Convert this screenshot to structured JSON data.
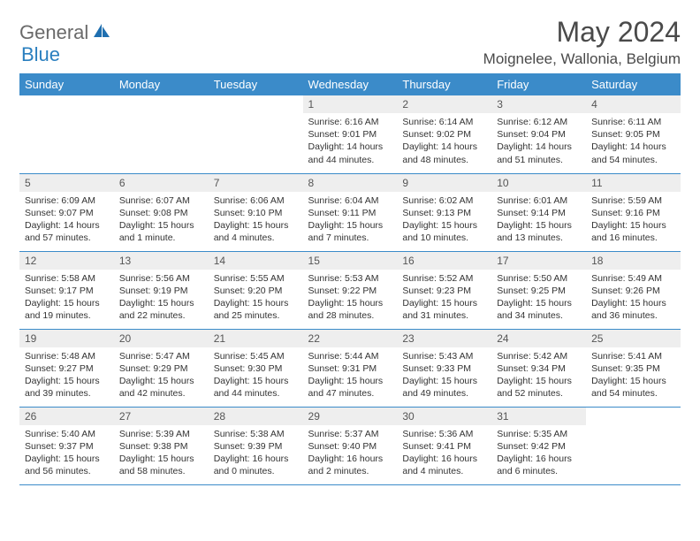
{
  "logo": {
    "text1": "General",
    "text2": "Blue"
  },
  "title": "May 2024",
  "location": "Moignelee, Wallonia, Belgium",
  "colors": {
    "header_bg": "#3b8bc9",
    "header_text": "#ffffff",
    "daynum_bg": "#eeeeee",
    "border": "#3b8bc9",
    "logo_gray": "#6a6a6a",
    "logo_blue": "#2a7fbf"
  },
  "weekdays": [
    "Sunday",
    "Monday",
    "Tuesday",
    "Wednesday",
    "Thursday",
    "Friday",
    "Saturday"
  ],
  "weeks": [
    [
      null,
      null,
      null,
      {
        "n": "1",
        "sr": "6:16 AM",
        "ss": "9:01 PM",
        "dl": "14 hours and 44 minutes."
      },
      {
        "n": "2",
        "sr": "6:14 AM",
        "ss": "9:02 PM",
        "dl": "14 hours and 48 minutes."
      },
      {
        "n": "3",
        "sr": "6:12 AM",
        "ss": "9:04 PM",
        "dl": "14 hours and 51 minutes."
      },
      {
        "n": "4",
        "sr": "6:11 AM",
        "ss": "9:05 PM",
        "dl": "14 hours and 54 minutes."
      }
    ],
    [
      {
        "n": "5",
        "sr": "6:09 AM",
        "ss": "9:07 PM",
        "dl": "14 hours and 57 minutes."
      },
      {
        "n": "6",
        "sr": "6:07 AM",
        "ss": "9:08 PM",
        "dl": "15 hours and 1 minute."
      },
      {
        "n": "7",
        "sr": "6:06 AM",
        "ss": "9:10 PM",
        "dl": "15 hours and 4 minutes."
      },
      {
        "n": "8",
        "sr": "6:04 AM",
        "ss": "9:11 PM",
        "dl": "15 hours and 7 minutes."
      },
      {
        "n": "9",
        "sr": "6:02 AM",
        "ss": "9:13 PM",
        "dl": "15 hours and 10 minutes."
      },
      {
        "n": "10",
        "sr": "6:01 AM",
        "ss": "9:14 PM",
        "dl": "15 hours and 13 minutes."
      },
      {
        "n": "11",
        "sr": "5:59 AM",
        "ss": "9:16 PM",
        "dl": "15 hours and 16 minutes."
      }
    ],
    [
      {
        "n": "12",
        "sr": "5:58 AM",
        "ss": "9:17 PM",
        "dl": "15 hours and 19 minutes."
      },
      {
        "n": "13",
        "sr": "5:56 AM",
        "ss": "9:19 PM",
        "dl": "15 hours and 22 minutes."
      },
      {
        "n": "14",
        "sr": "5:55 AM",
        "ss": "9:20 PM",
        "dl": "15 hours and 25 minutes."
      },
      {
        "n": "15",
        "sr": "5:53 AM",
        "ss": "9:22 PM",
        "dl": "15 hours and 28 minutes."
      },
      {
        "n": "16",
        "sr": "5:52 AM",
        "ss": "9:23 PM",
        "dl": "15 hours and 31 minutes."
      },
      {
        "n": "17",
        "sr": "5:50 AM",
        "ss": "9:25 PM",
        "dl": "15 hours and 34 minutes."
      },
      {
        "n": "18",
        "sr": "5:49 AM",
        "ss": "9:26 PM",
        "dl": "15 hours and 36 minutes."
      }
    ],
    [
      {
        "n": "19",
        "sr": "5:48 AM",
        "ss": "9:27 PM",
        "dl": "15 hours and 39 minutes."
      },
      {
        "n": "20",
        "sr": "5:47 AM",
        "ss": "9:29 PM",
        "dl": "15 hours and 42 minutes."
      },
      {
        "n": "21",
        "sr": "5:45 AM",
        "ss": "9:30 PM",
        "dl": "15 hours and 44 minutes."
      },
      {
        "n": "22",
        "sr": "5:44 AM",
        "ss": "9:31 PM",
        "dl": "15 hours and 47 minutes."
      },
      {
        "n": "23",
        "sr": "5:43 AM",
        "ss": "9:33 PM",
        "dl": "15 hours and 49 minutes."
      },
      {
        "n": "24",
        "sr": "5:42 AM",
        "ss": "9:34 PM",
        "dl": "15 hours and 52 minutes."
      },
      {
        "n": "25",
        "sr": "5:41 AM",
        "ss": "9:35 PM",
        "dl": "15 hours and 54 minutes."
      }
    ],
    [
      {
        "n": "26",
        "sr": "5:40 AM",
        "ss": "9:37 PM",
        "dl": "15 hours and 56 minutes."
      },
      {
        "n": "27",
        "sr": "5:39 AM",
        "ss": "9:38 PM",
        "dl": "15 hours and 58 minutes."
      },
      {
        "n": "28",
        "sr": "5:38 AM",
        "ss": "9:39 PM",
        "dl": "16 hours and 0 minutes."
      },
      {
        "n": "29",
        "sr": "5:37 AM",
        "ss": "9:40 PM",
        "dl": "16 hours and 2 minutes."
      },
      {
        "n": "30",
        "sr": "5:36 AM",
        "ss": "9:41 PM",
        "dl": "16 hours and 4 minutes."
      },
      {
        "n": "31",
        "sr": "5:35 AM",
        "ss": "9:42 PM",
        "dl": "16 hours and 6 minutes."
      },
      null
    ]
  ],
  "labels": {
    "sunrise": "Sunrise:",
    "sunset": "Sunset:",
    "daylight": "Daylight:"
  }
}
